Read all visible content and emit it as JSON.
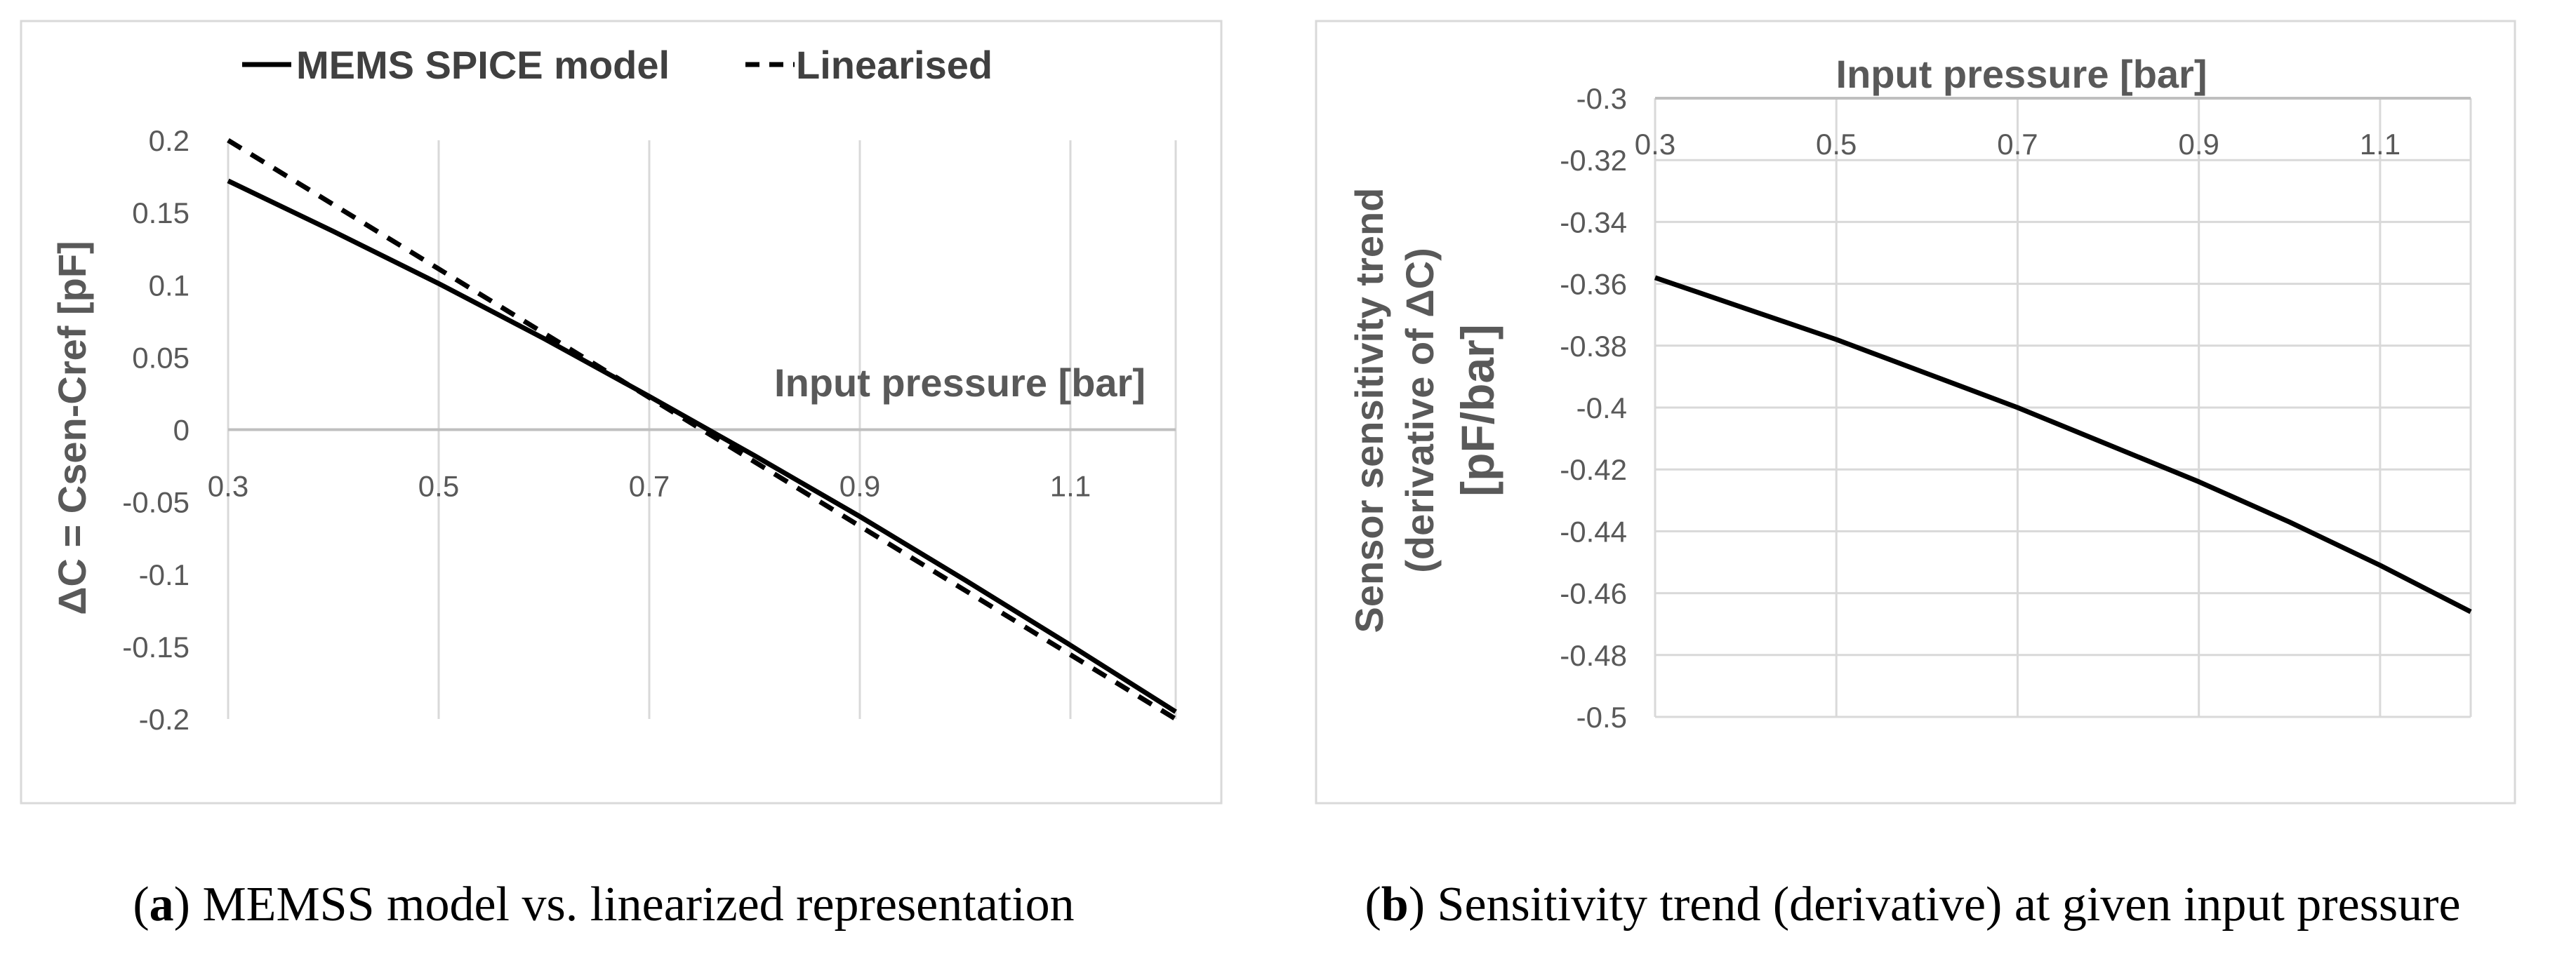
{
  "chart_data": [
    {
      "type": "line",
      "panel_label": "a",
      "caption": "MEMSS model vs. linearized representation",
      "xlabel": "Input pressure [bar]",
      "ylabel": "ΔC = Csen-Cref [pF]",
      "xlim": [
        0.3,
        1.2
      ],
      "ylim": [
        -0.2,
        0.2
      ],
      "x_ticks": [
        0.3,
        0.5,
        0.7,
        0.9,
        1.1
      ],
      "x_tick_labels": [
        "0.3",
        "0.5",
        "0.7",
        "0.9",
        "1.1"
      ],
      "y_ticks": [
        0.2,
        0.15,
        0.1,
        0.05,
        0,
        -0.05,
        -0.1,
        -0.15,
        -0.2
      ],
      "y_tick_labels": [
        "0.2",
        "0.15",
        "0.1",
        "0.05",
        "0",
        "-0.05",
        "-0.1",
        "-0.15",
        "-0.2"
      ],
      "x_axis_position": "y=0",
      "grid": "vertical",
      "legend": "top",
      "series": [
        {
          "name": "MEMS SPICE model",
          "style": "solid",
          "color": "#000000",
          "x": [
            0.3,
            0.4,
            0.5,
            0.6,
            0.7,
            0.8,
            0.9,
            1.0,
            1.1,
            1.2
          ],
          "y": [
            0.172,
            0.137,
            0.101,
            0.063,
            0.023,
            -0.018,
            -0.06,
            -0.104,
            -0.149,
            -0.195
          ]
        },
        {
          "name": "Linearised",
          "style": "dashed",
          "color": "#000000",
          "x": [
            0.3,
            1.2
          ],
          "y": [
            0.2,
            -0.2
          ]
        }
      ]
    },
    {
      "type": "line",
      "panel_label": "b",
      "caption": "Sensitivity trend (derivative) at given input pressure",
      "xlabel": "Input pressure [bar]",
      "ylabel_line1": "Sensor sensitivity trend",
      "ylabel_line2": "(derivative of ΔC)",
      "ylabel_line3": "[pF/bar]",
      "xlim": [
        0.3,
        1.2
      ],
      "ylim": [
        -0.5,
        -0.3
      ],
      "x_ticks": [
        0.3,
        0.5,
        0.7,
        0.9,
        1.1
      ],
      "x_tick_labels": [
        "0.3",
        "0.5",
        "0.7",
        "0.9",
        "1.1"
      ],
      "y_ticks": [
        -0.3,
        -0.32,
        -0.34,
        -0.36,
        -0.38,
        -0.4,
        -0.42,
        -0.44,
        -0.46,
        -0.48,
        -0.5
      ],
      "y_tick_labels": [
        "-0.3",
        "-0.32",
        "-0.34",
        "-0.36",
        "-0.38",
        "-0.4",
        "-0.42",
        "-0.44",
        "-0.46",
        "-0.48",
        "-0.5"
      ],
      "x_axis_position": "top",
      "grid": "both",
      "series": [
        {
          "style": "solid",
          "color": "#000000",
          "x": [
            0.3,
            0.4,
            0.5,
            0.6,
            0.7,
            0.8,
            0.9,
            1.0,
            1.1,
            1.2
          ],
          "y": [
            -0.358,
            -0.368,
            -0.378,
            -0.389,
            -0.4,
            -0.412,
            -0.424,
            -0.437,
            -0.451,
            -0.466
          ]
        }
      ]
    }
  ],
  "colors": {
    "grid": "#d9d9d9",
    "frame": "#d9d9d9",
    "axis": "#bfbfbf",
    "text": "#595959",
    "line": "#000000"
  }
}
